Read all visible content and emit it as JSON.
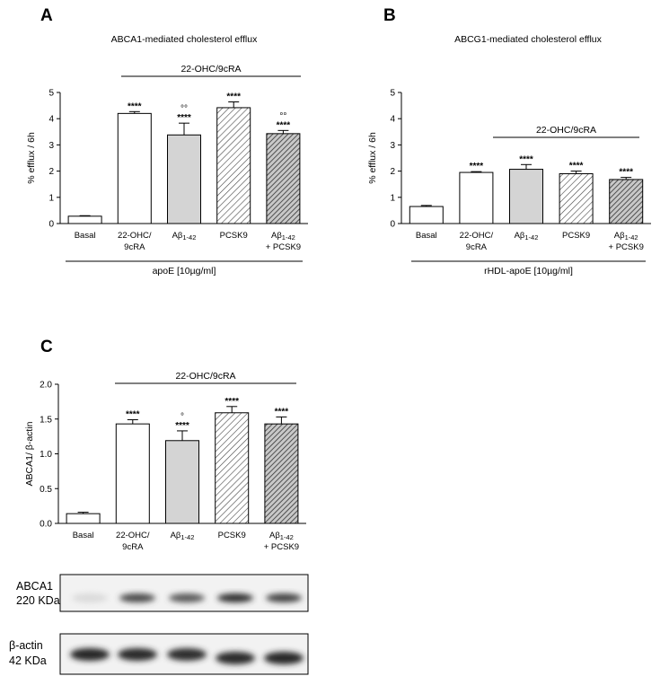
{
  "chart_data": [
    {
      "panel": "A",
      "type": "bar",
      "title": "ABCA1-mediated cholesterol efflux",
      "ylabel": "% efflux / 6h",
      "ylim": [
        0,
        5
      ],
      "yticks": [
        "0",
        "1",
        "2",
        "3",
        "4",
        "5"
      ],
      "categories": [
        {
          "main": "Basal"
        },
        {
          "main": "22-OHC/",
          "second": "9cRA"
        },
        {
          "main": "Aβ",
          "sub": "1-42"
        },
        {
          "main": "PCSK9"
        },
        {
          "main": "Aβ",
          "sub": "1-42",
          "second": "+ PCSK9"
        }
      ],
      "values": [
        0.28,
        4.2,
        3.38,
        4.42,
        3.43
      ],
      "errors": [
        0.02,
        0.07,
        0.45,
        0.22,
        0.12
      ],
      "fills": [
        "white",
        "white",
        "gray",
        "hatch-light",
        "hatch-dark"
      ],
      "significance": [
        "",
        "****",
        "****",
        "****",
        "****"
      ],
      "degree_marks": [
        "",
        "",
        "°°",
        "",
        "°°"
      ],
      "bracket_label": "22-OHC/9cRA",
      "group_label": "apoE [10µg/ml]"
    },
    {
      "panel": "B",
      "type": "bar",
      "title": "ABCG1-mediated cholesterol efflux",
      "ylabel": "% efflux / 6h",
      "ylim": [
        0,
        5
      ],
      "yticks": [
        "0",
        "1",
        "2",
        "3",
        "4",
        "5"
      ],
      "categories": [
        {
          "main": "Basal"
        },
        {
          "main": "22-OHC/",
          "second": "9cRA"
        },
        {
          "main": "Aβ",
          "sub": "1-42"
        },
        {
          "main": "PCSK9"
        },
        {
          "main": "Aβ",
          "sub": "1-42",
          "second": "+ PCSK9"
        }
      ],
      "values": [
        0.65,
        1.95,
        2.07,
        1.9,
        1.68
      ],
      "errors": [
        0.04,
        0.03,
        0.18,
        0.1,
        0.08
      ],
      "fills": [
        "white",
        "white",
        "gray",
        "hatch-light",
        "hatch-dark"
      ],
      "significance": [
        "",
        "****",
        "****",
        "****",
        "****"
      ],
      "degree_marks": [
        "",
        "",
        "",
        "",
        ""
      ],
      "bracket_label": "22-OHC/9cRA",
      "group_label": "rHDL-apoE [10µg/ml]"
    },
    {
      "panel": "C",
      "type": "bar",
      "title": "",
      "ylabel": "ABCA1/ β-actin",
      "ylim": [
        0,
        2.0
      ],
      "yticks": [
        "0.0",
        "0.5",
        "1.0",
        "1.5",
        "2.0"
      ],
      "categories": [
        {
          "main": "Basal"
        },
        {
          "main": "22-OHC/",
          "second": "9cRA"
        },
        {
          "main": "Aβ",
          "sub": "1-42"
        },
        {
          "main": "PCSK9"
        },
        {
          "main": "Aβ",
          "sub": "1-42",
          "second": "+ PCSK9"
        }
      ],
      "values": [
        0.14,
        1.43,
        1.19,
        1.59,
        1.43
      ],
      "errors": [
        0.02,
        0.06,
        0.14,
        0.09,
        0.1
      ],
      "fills": [
        "white",
        "white",
        "gray",
        "hatch-light",
        "hatch-dark"
      ],
      "significance": [
        "",
        "****",
        "****",
        "****",
        "****"
      ],
      "degree_marks": [
        "",
        "",
        "°",
        "",
        ""
      ],
      "bracket_label": "22-OHC/9cRA",
      "group_label": ""
    }
  ],
  "blots": [
    {
      "label_line1": "ABCA1",
      "label_line2": "220 KDa",
      "intensities": [
        0.08,
        0.75,
        0.68,
        0.88,
        0.78
      ]
    },
    {
      "label_line1": "β-actin",
      "label_line2": "42 KDa",
      "intensities": [
        0.92,
        0.9,
        0.88,
        0.9,
        0.92
      ]
    }
  ],
  "colors": {
    "gray_bar": "#d4d4d4",
    "axis": "#000000",
    "bar_edge": "#000000"
  }
}
